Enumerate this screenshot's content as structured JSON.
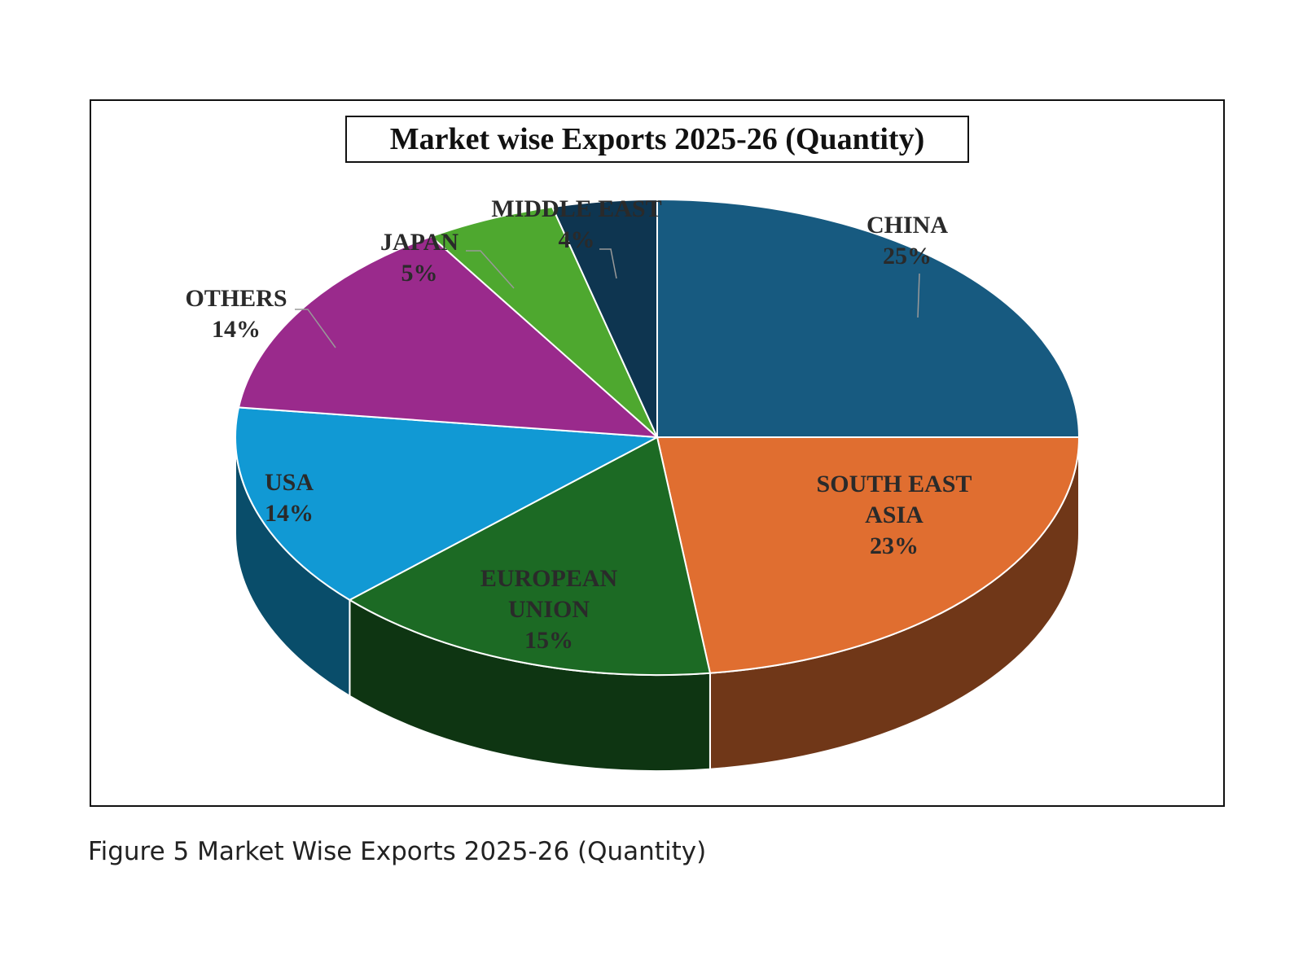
{
  "chart_data": {
    "type": "pie",
    "title": "Market wise Exports 2025-26 (Quantity)",
    "categories": [
      "CHINA",
      "SOUTH EAST ASIA",
      "EUROPEAN UNION",
      "USA",
      "OTHERS",
      "JAPAN",
      "MIDDLE EAST"
    ],
    "values": [
      25,
      23,
      15,
      14,
      14,
      5,
      4
    ],
    "value_labels": [
      "25%",
      "23%",
      "15%",
      "14%",
      "14%",
      "5%",
      "4%"
    ],
    "colors": [
      "#175a80",
      "#e06e30",
      "#1c6a24",
      "#1199d4",
      "#9a2a8c",
      "#4ea82f",
      "#0e3550"
    ]
  },
  "caption": "Figure 5 Market Wise Exports 2025-26 (Quantity)"
}
